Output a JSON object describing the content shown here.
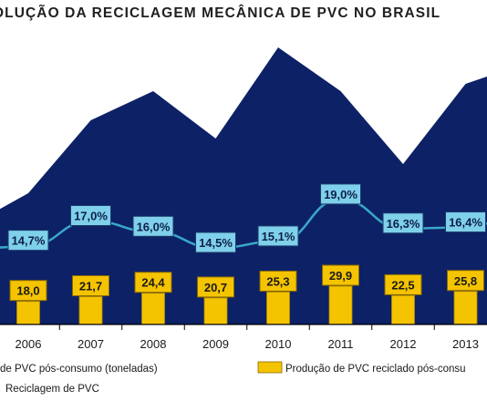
{
  "title": "OLUÇÃO DA RECICLAGEM MECÂNICA DE PVC NO BRASIL",
  "colors": {
    "area": "#0d2166",
    "line": "#3aa8c8",
    "label_box": "#7fd0ea",
    "bar": "#f5c400",
    "bar_label_box": "#f5c400",
    "axis": "#000000"
  },
  "chart_data": {
    "type": "bar",
    "categories": [
      "2006",
      "2007",
      "2008",
      "2009",
      "2010",
      "2011",
      "2012",
      "2013"
    ],
    "series": [
      {
        "name": "Produção de PVC reciclado pós-consumo",
        "type": "bar",
        "values": [
          18.0,
          21.7,
          24.4,
          20.7,
          25.3,
          29.9,
          22.5,
          25.8
        ],
        "labels": [
          "18,0",
          "21,7",
          "24,4",
          "20,7",
          "25,3",
          "29,9",
          "22,5",
          "25,8"
        ]
      },
      {
        "name": "Reciclagem de PVC",
        "type": "line",
        "values": [
          14.7,
          17.0,
          16.0,
          14.5,
          15.1,
          19.0,
          16.3,
          16.4
        ],
        "labels": [
          "14,7%",
          "17,0%",
          "16,0%",
          "14,5%",
          "15,1%",
          "19,0%",
          "16,3%",
          "16,4%"
        ]
      },
      {
        "name": "de PVC pós-consumo (toneladas)",
        "type": "area",
        "values": [
          130,
          150,
          158,
          145,
          170,
          158,
          138,
          160
        ]
      }
    ],
    "legend": {
      "area_label": "de PVC pós-consumo (toneladas)",
      "bar_label": "Produção de PVC reciclado pós-consu",
      "line_label": "Reciclagem de PVC",
      "placement": "bottom"
    },
    "grid": false
  }
}
